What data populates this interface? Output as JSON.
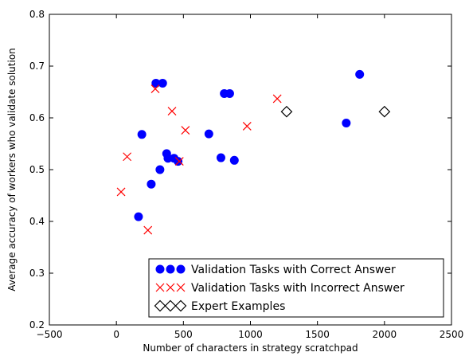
{
  "chart_data": {
    "type": "scatter",
    "title": "",
    "xlabel": "Number of characters in strategy scratchpad",
    "ylabel": "Average accuracy of workers who validate solution",
    "xlim": [
      -500,
      2500
    ],
    "ylim": [
      0.2,
      0.8
    ],
    "x_ticks": [
      -500,
      0,
      500,
      1000,
      1500,
      2000,
      2500
    ],
    "x_tick_labels": [
      "−500",
      "0",
      "500",
      "1000",
      "1500",
      "2000",
      "2500"
    ],
    "y_ticks": [
      0.2,
      0.3,
      0.4,
      0.5,
      0.6,
      0.7,
      0.8
    ],
    "y_tick_labels": [
      "0.2",
      "0.3",
      "0.4",
      "0.5",
      "0.6",
      "0.7",
      "0.8"
    ],
    "grid": false,
    "legend_position": "bottom-right",
    "series": [
      {
        "name": "Validation Tasks with Correct Answer",
        "marker": "circle",
        "color": "#0000ff",
        "points": [
          {
            "x": 165,
            "y": 0.409
          },
          {
            "x": 190,
            "y": 0.568
          },
          {
            "x": 260,
            "y": 0.472
          },
          {
            "x": 295,
            "y": 0.667
          },
          {
            "x": 325,
            "y": 0.5
          },
          {
            "x": 345,
            "y": 0.667
          },
          {
            "x": 375,
            "y": 0.531
          },
          {
            "x": 385,
            "y": 0.522
          },
          {
            "x": 430,
            "y": 0.522
          },
          {
            "x": 460,
            "y": 0.516
          },
          {
            "x": 690,
            "y": 0.569
          },
          {
            "x": 780,
            "y": 0.523
          },
          {
            "x": 805,
            "y": 0.647
          },
          {
            "x": 845,
            "y": 0.647
          },
          {
            "x": 880,
            "y": 0.518
          },
          {
            "x": 1715,
            "y": 0.59
          },
          {
            "x": 1815,
            "y": 0.684
          }
        ]
      },
      {
        "name": "Validation Tasks with Incorrect Answer",
        "marker": "x",
        "color": "#ff0000",
        "points": [
          {
            "x": 35,
            "y": 0.457
          },
          {
            "x": 80,
            "y": 0.525
          },
          {
            "x": 235,
            "y": 0.383
          },
          {
            "x": 290,
            "y": 0.656
          },
          {
            "x": 415,
            "y": 0.613
          },
          {
            "x": 470,
            "y": 0.516
          },
          {
            "x": 515,
            "y": 0.576
          },
          {
            "x": 975,
            "y": 0.584
          },
          {
            "x": 1200,
            "y": 0.637
          }
        ]
      },
      {
        "name": "Expert Examples",
        "marker": "diamond",
        "color": "#000000",
        "points": [
          {
            "x": 1270,
            "y": 0.612
          },
          {
            "x": 2000,
            "y": 0.612
          }
        ]
      }
    ]
  }
}
